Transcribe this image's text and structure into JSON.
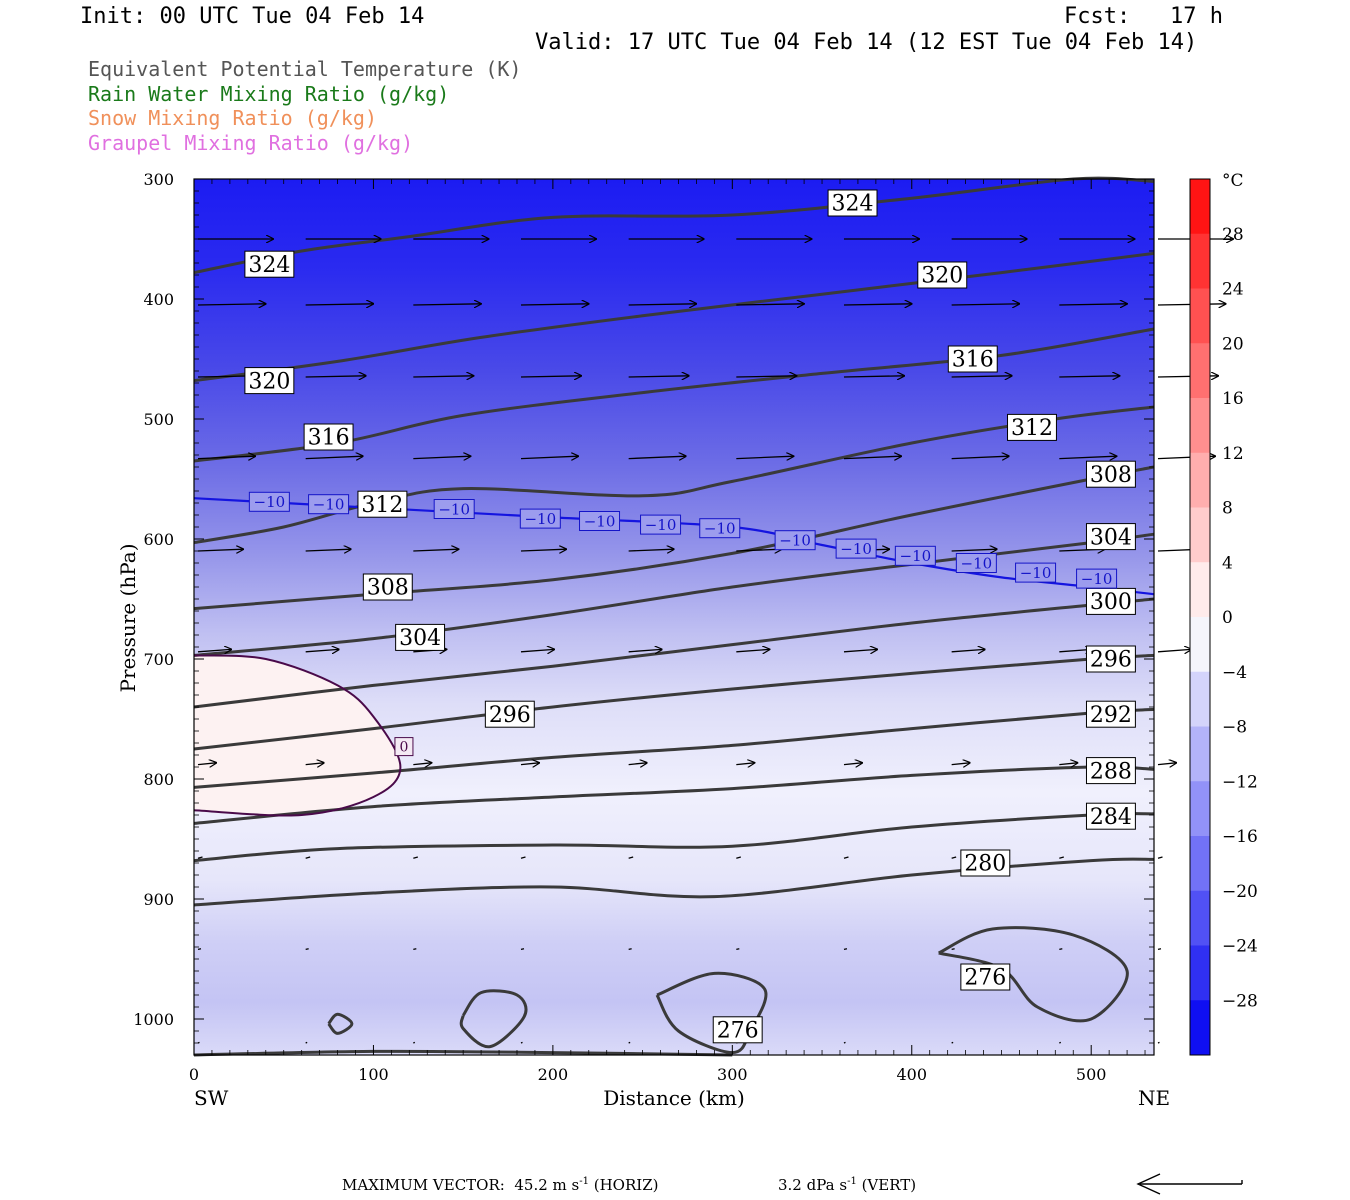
{
  "header": {
    "init": "Init: 00 UTC Tue 04 Feb 14",
    "fcst": "Fcst:   17 h",
    "valid": "Valid: 17 UTC Tue 04 Feb 14 (12 EST Tue 04 Feb 14)"
  },
  "legend": [
    {
      "label": "Equivalent Potential Temperature (K)",
      "color": "#555555"
    },
    {
      "label": "Rain Water Mixing Ratio (g/kg)",
      "color": "#1a7a1a"
    },
    {
      "label": "Snow Mixing Ratio (g/kg)",
      "color": "#f0905a"
    },
    {
      "label": "Graupel Mixing Ratio (g/kg)",
      "color": "#e070e0"
    }
  ],
  "chart_data": {
    "type": "heatmap",
    "xlabel": "Distance (km)",
    "ylabel": "Pressure (hPa)",
    "xlim": [
      0,
      535
    ],
    "ylim": [
      1030,
      300
    ],
    "x_ticks": [
      "0",
      "100",
      "200",
      "300",
      "400",
      "500"
    ],
    "x_tick_values": [
      0,
      100,
      200,
      300,
      400,
      500
    ],
    "y_ticks": [
      "300",
      "400",
      "500",
      "600",
      "700",
      "800",
      "900",
      "1000"
    ],
    "y_tick_values": [
      300,
      400,
      500,
      600,
      700,
      800,
      900,
      1000
    ],
    "left_label": "SW",
    "right_label": "NE",
    "colorbar": {
      "unit": "°C",
      "labels": [
        "28",
        "24",
        "20",
        "16",
        "12",
        "8",
        "4",
        "0",
        "−4",
        "−8",
        "−12",
        "−16",
        "−20",
        "−24",
        "−28"
      ],
      "values": [
        28,
        24,
        20,
        16,
        12,
        8,
        4,
        0,
        -4,
        -8,
        -12,
        -16,
        -20,
        -24,
        -28
      ]
    },
    "theta_e_contours": [
      {
        "value": 324,
        "label": "324",
        "points": [
          [
            0,
            378
          ],
          [
            60,
            360
          ],
          [
            120,
            348
          ],
          [
            200,
            332
          ],
          [
            300,
            330
          ],
          [
            400,
            316
          ],
          [
            490,
            300
          ],
          [
            535,
            302
          ]
        ],
        "labels_at": [
          [
            42,
            371
          ],
          [
            367,
            320
          ]
        ]
      },
      {
        "value": 320,
        "label": "320",
        "points": [
          [
            0,
            468
          ],
          [
            80,
            452
          ],
          [
            160,
            432
          ],
          [
            250,
            414
          ],
          [
            350,
            396
          ],
          [
            450,
            378
          ],
          [
            535,
            362
          ]
        ],
        "labels_at": [
          [
            42,
            468
          ],
          [
            417,
            380
          ]
        ]
      },
      {
        "value": 316,
        "label": "316",
        "points": [
          [
            0,
            535
          ],
          [
            80,
            520
          ],
          [
            150,
            497
          ],
          [
            250,
            478
          ],
          [
            350,
            462
          ],
          [
            450,
            447
          ],
          [
            535,
            425
          ]
        ],
        "labels_at": [
          [
            75,
            515
          ],
          [
            434,
            450
          ]
        ]
      },
      {
        "value": 312,
        "label": "312",
        "points": [
          [
            0,
            603
          ],
          [
            50,
            590
          ],
          [
            100,
            570
          ],
          [
            150,
            558
          ],
          [
            250,
            564
          ],
          [
            300,
            552
          ],
          [
            400,
            520
          ],
          [
            480,
            500
          ],
          [
            535,
            490
          ]
        ],
        "labels_at": [
          [
            105,
            571
          ],
          [
            467,
            507
          ]
        ]
      },
      {
        "value": 308,
        "label": "308",
        "points": [
          [
            0,
            658
          ],
          [
            100,
            646
          ],
          [
            200,
            634
          ],
          [
            300,
            612
          ],
          [
            400,
            580
          ],
          [
            500,
            550
          ],
          [
            535,
            540
          ]
        ],
        "labels_at": [
          [
            108,
            640
          ],
          [
            511,
            546
          ]
        ]
      },
      {
        "value": 304,
        "label": "304",
        "points": [
          [
            0,
            697
          ],
          [
            100,
            683
          ],
          [
            200,
            663
          ],
          [
            300,
            640
          ],
          [
            400,
            621
          ],
          [
            500,
            603
          ],
          [
            535,
            596
          ]
        ],
        "labels_at": [
          [
            126,
            682
          ],
          [
            511,
            598
          ]
        ]
      },
      {
        "value": 300,
        "label": "300",
        "points": [
          [
            0,
            740
          ],
          [
            100,
            722
          ],
          [
            200,
            706
          ],
          [
            300,
            688
          ],
          [
            400,
            670
          ],
          [
            500,
            655
          ],
          [
            535,
            650
          ]
        ],
        "labels_at": [
          [
            511,
            652
          ]
        ]
      },
      {
        "value": 296,
        "label": "296",
        "points": [
          [
            0,
            775
          ],
          [
            100,
            758
          ],
          [
            200,
            740
          ],
          [
            300,
            725
          ],
          [
            400,
            712
          ],
          [
            500,
            700
          ],
          [
            535,
            697
          ]
        ],
        "labels_at": [
          [
            176,
            746
          ],
          [
            511,
            700
          ]
        ]
      },
      {
        "value": 292,
        "label": "292",
        "points": [
          [
            0,
            807
          ],
          [
            100,
            795
          ],
          [
            200,
            782
          ],
          [
            300,
            772
          ],
          [
            400,
            758
          ],
          [
            500,
            745
          ],
          [
            535,
            742
          ]
        ],
        "labels_at": [
          [
            511,
            746
          ]
        ]
      },
      {
        "value": 288,
        "label": "288",
        "points": [
          [
            0,
            837
          ],
          [
            100,
            823
          ],
          [
            200,
            815
          ],
          [
            300,
            808
          ],
          [
            400,
            797
          ],
          [
            500,
            790
          ],
          [
            535,
            792
          ]
        ],
        "labels_at": [
          [
            511,
            793
          ]
        ]
      },
      {
        "value": 284,
        "label": "284",
        "points": [
          [
            0,
            868
          ],
          [
            80,
            858
          ],
          [
            200,
            855
          ],
          [
            300,
            856
          ],
          [
            400,
            840
          ],
          [
            500,
            830
          ],
          [
            535,
            829
          ]
        ],
        "labels_at": [
          [
            511,
            831
          ]
        ]
      },
      {
        "value": 280,
        "label": "280",
        "points": [
          [
            0,
            905
          ],
          [
            100,
            895
          ],
          [
            200,
            890
          ],
          [
            290,
            898
          ],
          [
            400,
            880
          ],
          [
            500,
            868
          ],
          [
            535,
            867
          ]
        ],
        "labels_at": [
          [
            441,
            870
          ]
        ]
      },
      {
        "value": 276,
        "label": "276",
        "points": [
          [
            0,
            1030
          ],
          [
            100,
            1027
          ],
          [
            200,
            1028
          ],
          [
            300,
            1030
          ]
        ],
        "labels_at": [
          [
            303,
            1009
          ],
          [
            441,
            965
          ]
        ]
      }
    ],
    "temp_minus10_contour": {
      "label": "−10",
      "points": [
        [
          0,
          566
        ],
        [
          100,
          574
        ],
        [
          200,
          582
        ],
        [
          300,
          590
        ],
        [
          350,
          605
        ],
        [
          400,
          620
        ],
        [
          450,
          632
        ],
        [
          500,
          640
        ],
        [
          535,
          646
        ]
      ],
      "labels_at": [
        [
          42,
          569
        ],
        [
          75,
          571
        ],
        [
          145,
          575
        ],
        [
          193,
          583
        ],
        [
          226,
          585
        ],
        [
          260,
          588
        ],
        [
          293,
          591
        ],
        [
          335,
          601
        ],
        [
          369,
          608
        ],
        [
          402,
          614
        ],
        [
          436,
          620
        ],
        [
          469,
          628
        ],
        [
          503,
          633
        ]
      ]
    },
    "temp_zero_contour": {
      "label": "0",
      "points": [
        [
          0,
          697
        ],
        [
          40,
          700
        ],
        [
          80,
          722
        ],
        [
          100,
          748
        ],
        [
          115,
          790
        ],
        [
          100,
          815
        ],
        [
          60,
          830
        ],
        [
          0,
          826
        ]
      ],
      "labels_at": [
        [
          117,
          773
        ]
      ]
    },
    "wind_vectors": [
      {
        "p": 350,
        "xs": [
          0,
          60,
          120,
          180,
          240,
          300,
          360,
          420,
          480,
          535
        ],
        "u": 50,
        "w": 0
      },
      {
        "p": 405,
        "xs": [
          0,
          60,
          120,
          180,
          240,
          300,
          360,
          420,
          480,
          535
        ],
        "u": 45,
        "w": 2
      },
      {
        "p": 465,
        "xs": [
          0,
          60,
          120,
          180,
          240,
          300,
          360,
          420,
          480,
          535
        ],
        "u": 40,
        "w": 2
      },
      {
        "p": 533,
        "xs": [
          0,
          60,
          120,
          180,
          240,
          300,
          360,
          420,
          480,
          535
        ],
        "u": 38,
        "w": 4
      },
      {
        "p": 610,
        "xs": [
          0,
          60,
          120,
          180,
          240,
          300,
          360,
          420,
          480,
          535
        ],
        "u": 30,
        "w": 3
      },
      {
        "p": 694,
        "xs": [
          0,
          60,
          120,
          180,
          240,
          300,
          360,
          420,
          480,
          535
        ],
        "u": 22,
        "w": 4
      },
      {
        "p": 788,
        "xs": [
          0,
          60,
          120,
          180,
          240,
          300,
          360,
          420,
          480,
          535
        ],
        "u": 12,
        "w": 3
      },
      {
        "p": 866,
        "xs": [
          0,
          60,
          120,
          180,
          240,
          300,
          360,
          420,
          480,
          535
        ],
        "u": 3,
        "w": 2
      },
      {
        "p": 942,
        "xs": [
          0,
          60,
          120,
          180,
          240,
          300,
          360,
          420,
          480,
          535
        ],
        "u": 2,
        "w": 1
      },
      {
        "p": 1020,
        "xs": [
          0,
          60,
          120,
          180,
          240,
          300,
          360,
          420,
          480,
          535
        ],
        "u": 1,
        "w": 1
      }
    ]
  },
  "footer": {
    "max_vector_label": "MAXIMUM VECTOR:  45.2 m s",
    "horiz_suffix": " (HORIZ)",
    "vert_label": "3.2 dPa s",
    "vert_suffix": " (VERT)",
    "exp": "-1"
  }
}
